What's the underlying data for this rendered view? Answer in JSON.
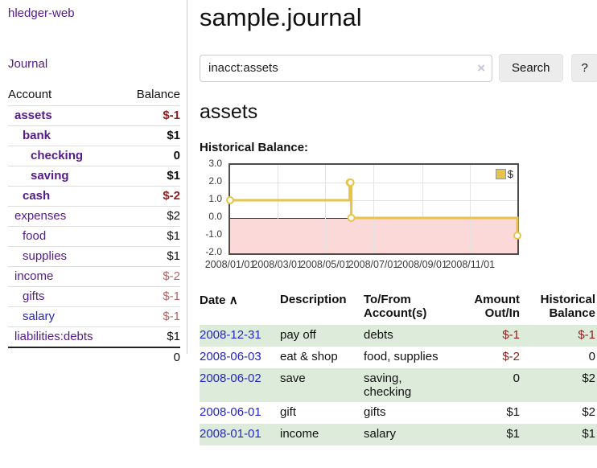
{
  "colors": {
    "link_purple": "#551a8b",
    "link_blue": "#2424cc",
    "negative_red": "#8f1d1d",
    "negative_muted_red": "#b06565",
    "chart_gold": "#e8c34a",
    "chart_negative_pink": "#fbd9d9",
    "chart_zero_line_red": "#8b0000",
    "row_green": "#ddecda"
  },
  "sidebar": {
    "app_title": "hledger-web",
    "journal_link": "Journal",
    "accounts": {
      "headers": {
        "account": "Account",
        "balance": "Balance"
      },
      "rows": [
        {
          "name": "assets",
          "balance": "$-1"
        },
        {
          "name": "bank",
          "balance": "$1"
        },
        {
          "name": "checking",
          "balance": "0"
        },
        {
          "name": "saving",
          "balance": "$1"
        },
        {
          "name": "cash",
          "balance": "$-2"
        },
        {
          "name": "expenses",
          "balance": "$2"
        },
        {
          "name": "food",
          "balance": "$1"
        },
        {
          "name": "supplies",
          "balance": "$1"
        },
        {
          "name": "income",
          "balance": "$-2"
        },
        {
          "name": "gifts",
          "balance": "$-1"
        },
        {
          "name": "salary",
          "balance": "$-1"
        },
        {
          "name": "liabilities:debts",
          "balance": "$1"
        }
      ],
      "total": "0"
    }
  },
  "main": {
    "title": "sample.journal",
    "search": {
      "value": "inacct:assets",
      "clear_icon": "×",
      "button_label": "Search",
      "help_label": "?"
    },
    "account_heading": "assets",
    "chart_label": "Historical Balance:"
  },
  "chart_data": {
    "type": "line",
    "step": true,
    "title": "Historical Balance",
    "series": [
      {
        "name": "$",
        "points": [
          [
            "2008-01-01",
            1
          ],
          [
            "2008-06-01",
            2
          ],
          [
            "2008-06-02",
            2
          ],
          [
            "2008-06-03",
            0
          ],
          [
            "2008-12-31",
            -1
          ]
        ]
      }
    ],
    "x_range": [
      "2008-01-01",
      "2008-12-31"
    ],
    "ylim": [
      -2,
      3
    ],
    "y_ticks": [
      "3.0",
      "2.0",
      "1.0",
      "0.0",
      "-1.0",
      "-2.0"
    ],
    "x_ticks": [
      "2008/01/01",
      "2008/03/01",
      "2008/05/01",
      "2008/07/01",
      "2008/09/01",
      "2008/11/01"
    ],
    "legend_position": "top-right",
    "grid": true
  },
  "register": {
    "headers": {
      "date": "Date",
      "sort_icon": "∧",
      "description": "Description",
      "accounts": "To/From Account(s)",
      "amount": "Amount Out/In",
      "historical": "Historical Balance"
    },
    "rows": [
      {
        "date": "2008-12-31",
        "description": "pay off",
        "accounts": "debts",
        "amount": "$-1",
        "historical": "$-1"
      },
      {
        "date": "2008-06-03",
        "description": "eat & shop",
        "accounts": "food, supplies",
        "amount": "$-2",
        "historical": "0"
      },
      {
        "date": "2008-06-02",
        "description": "save",
        "accounts": "saving, checking",
        "amount": "0",
        "historical": "$2"
      },
      {
        "date": "2008-06-01",
        "description": "gift",
        "accounts": "gifts",
        "amount": "$1",
        "historical": "$2"
      },
      {
        "date": "2008-01-01",
        "description": "income",
        "accounts": "salary",
        "amount": "$1",
        "historical": "$1"
      }
    ]
  }
}
